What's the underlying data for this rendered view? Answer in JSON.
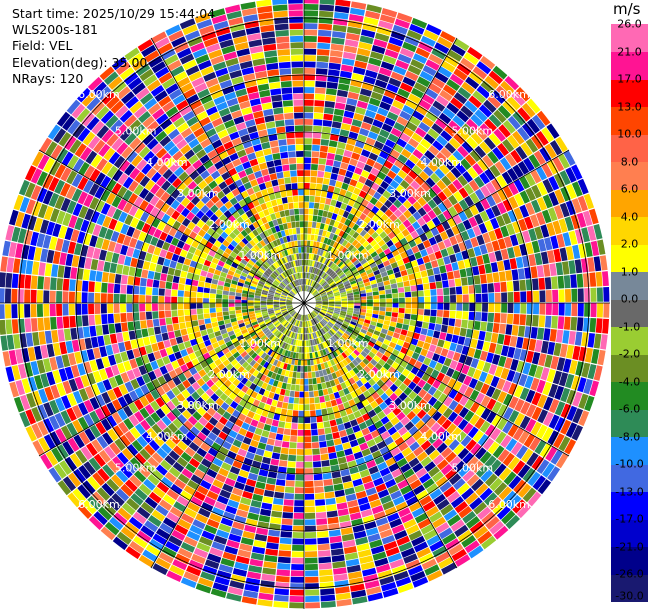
{
  "info": {
    "start_time": "Start time: 2025/10/29 15:44:04",
    "instrument": "WLS200s-181",
    "field": "Field: VEL",
    "elevation": "Elevation(deg): 35.00",
    "nrays": "NRays: 120"
  },
  "colorbar": {
    "unit": "m/s",
    "colors": [
      "#191970",
      "#00008b",
      "#0000cd",
      "#0000ff",
      "#4169e1",
      "#1e90ff",
      "#2e8b57",
      "#228b22",
      "#6b8e23",
      "#9acd32",
      "#696969",
      "#778899",
      "#ffff00",
      "#ffd700",
      "#ffa500",
      "#ff7f50",
      "#ff6347",
      "#ff4500",
      "#ff0000",
      "#ff1493",
      "#ff69b4"
    ],
    "ticks": [
      "-30.0",
      "-26.0",
      "-21.0",
      "-17.0",
      "-13.0",
      "-10.0",
      "-8.0",
      "-6.0",
      "-4.0",
      "-2.0",
      "-1.0",
      "0.0",
      "1.0",
      "2.0",
      "4.0",
      "6.0",
      "8.0",
      "10.0",
      "13.0",
      "17.0",
      "21.0",
      "26.0"
    ]
  },
  "range_rings": {
    "labels": [
      "1.00km",
      "2.00km",
      "3.00km",
      "4.00km",
      "5.00km",
      "6.00km"
    ]
  }
}
